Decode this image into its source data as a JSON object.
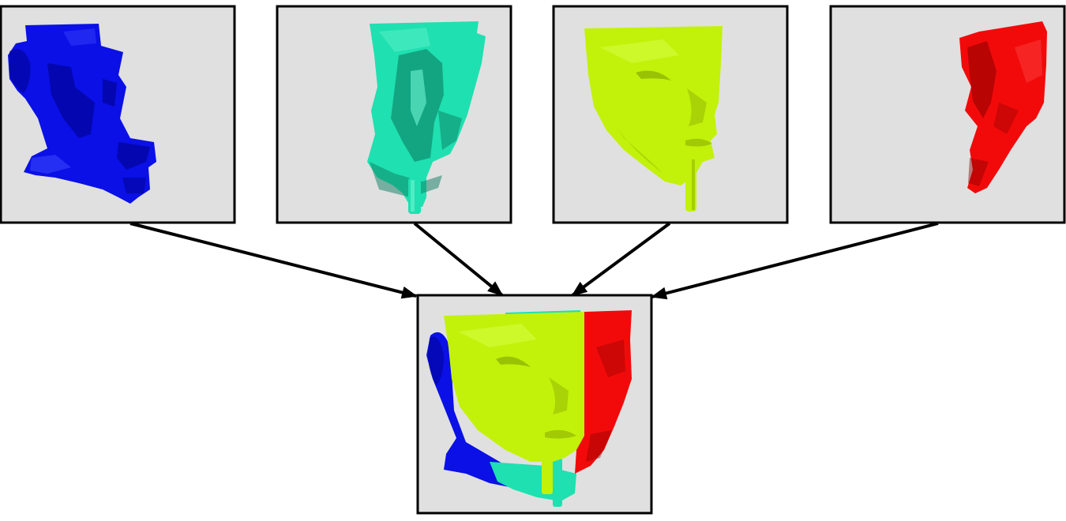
{
  "panels": [
    {
      "id": "blue",
      "color": "#0a10e6",
      "dark": "#00008a",
      "light": "#3f4cff"
    },
    {
      "id": "teal",
      "color": "#1fe0b0",
      "dark": "#0b7d62",
      "light": "#6ff5d3"
    },
    {
      "id": "yellow",
      "color": "#c2f20a",
      "dark": "#7a9a00",
      "light": "#dcff52"
    },
    {
      "id": "red",
      "color": "#f20a0a",
      "dark": "#8a0000",
      "light": "#ff4a4a"
    }
  ],
  "panel_background": "#e0e0e0",
  "frame_color": "#000000",
  "arrow_color": "#000000"
}
